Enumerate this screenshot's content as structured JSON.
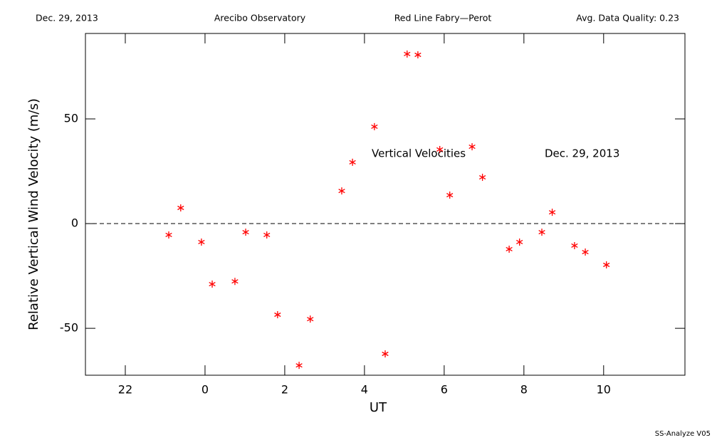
{
  "header": [
    "Dec. 29, 2013",
    "Arecibo Observatory",
    "Red Line Fabry—Perot",
    "Avg. Data Quality: 0.23"
  ],
  "footer": "SS-Analyze V05",
  "chart_data": {
    "type": "scatter",
    "xlabel": "UT",
    "ylabel": "Relative Vertical Wind Velocity (m/s)",
    "annotations": [
      "Vertical Velocities",
      "Dec. 29, 2013"
    ],
    "xlim": [
      -3,
      12.04
    ],
    "ylim": [
      -72.4,
      90.8
    ],
    "xticks": [
      {
        "value": -2,
        "label": "22"
      },
      0,
      2,
      4,
      6,
      8,
      10
    ],
    "yticks": [
      -50,
      0,
      50
    ],
    "zero_line": true,
    "series": [
      {
        "name": "Vertical Velocities",
        "color": "#ff0000",
        "x": [
          -0.91,
          -0.61,
          -0.09,
          0.18,
          0.75,
          1.02,
          1.55,
          1.82,
          2.36,
          2.64,
          3.43,
          3.7,
          4.25,
          4.52,
          5.07,
          5.34,
          5.89,
          6.14,
          6.7,
          6.96,
          7.63,
          7.89,
          8.45,
          8.71,
          9.27,
          9.54,
          10.07
        ],
        "values": [
          -5.4,
          7.5,
          -8.8,
          -28.9,
          -27.6,
          -4.1,
          -5.4,
          -43.5,
          -67.7,
          -45.6,
          15.6,
          29.3,
          46.3,
          -62.2,
          81.0,
          80.6,
          35.4,
          13.6,
          36.7,
          22.1,
          -12.2,
          -8.8,
          -4.1,
          5.4,
          -10.5,
          -13.6,
          -19.7
        ]
      }
    ]
  }
}
